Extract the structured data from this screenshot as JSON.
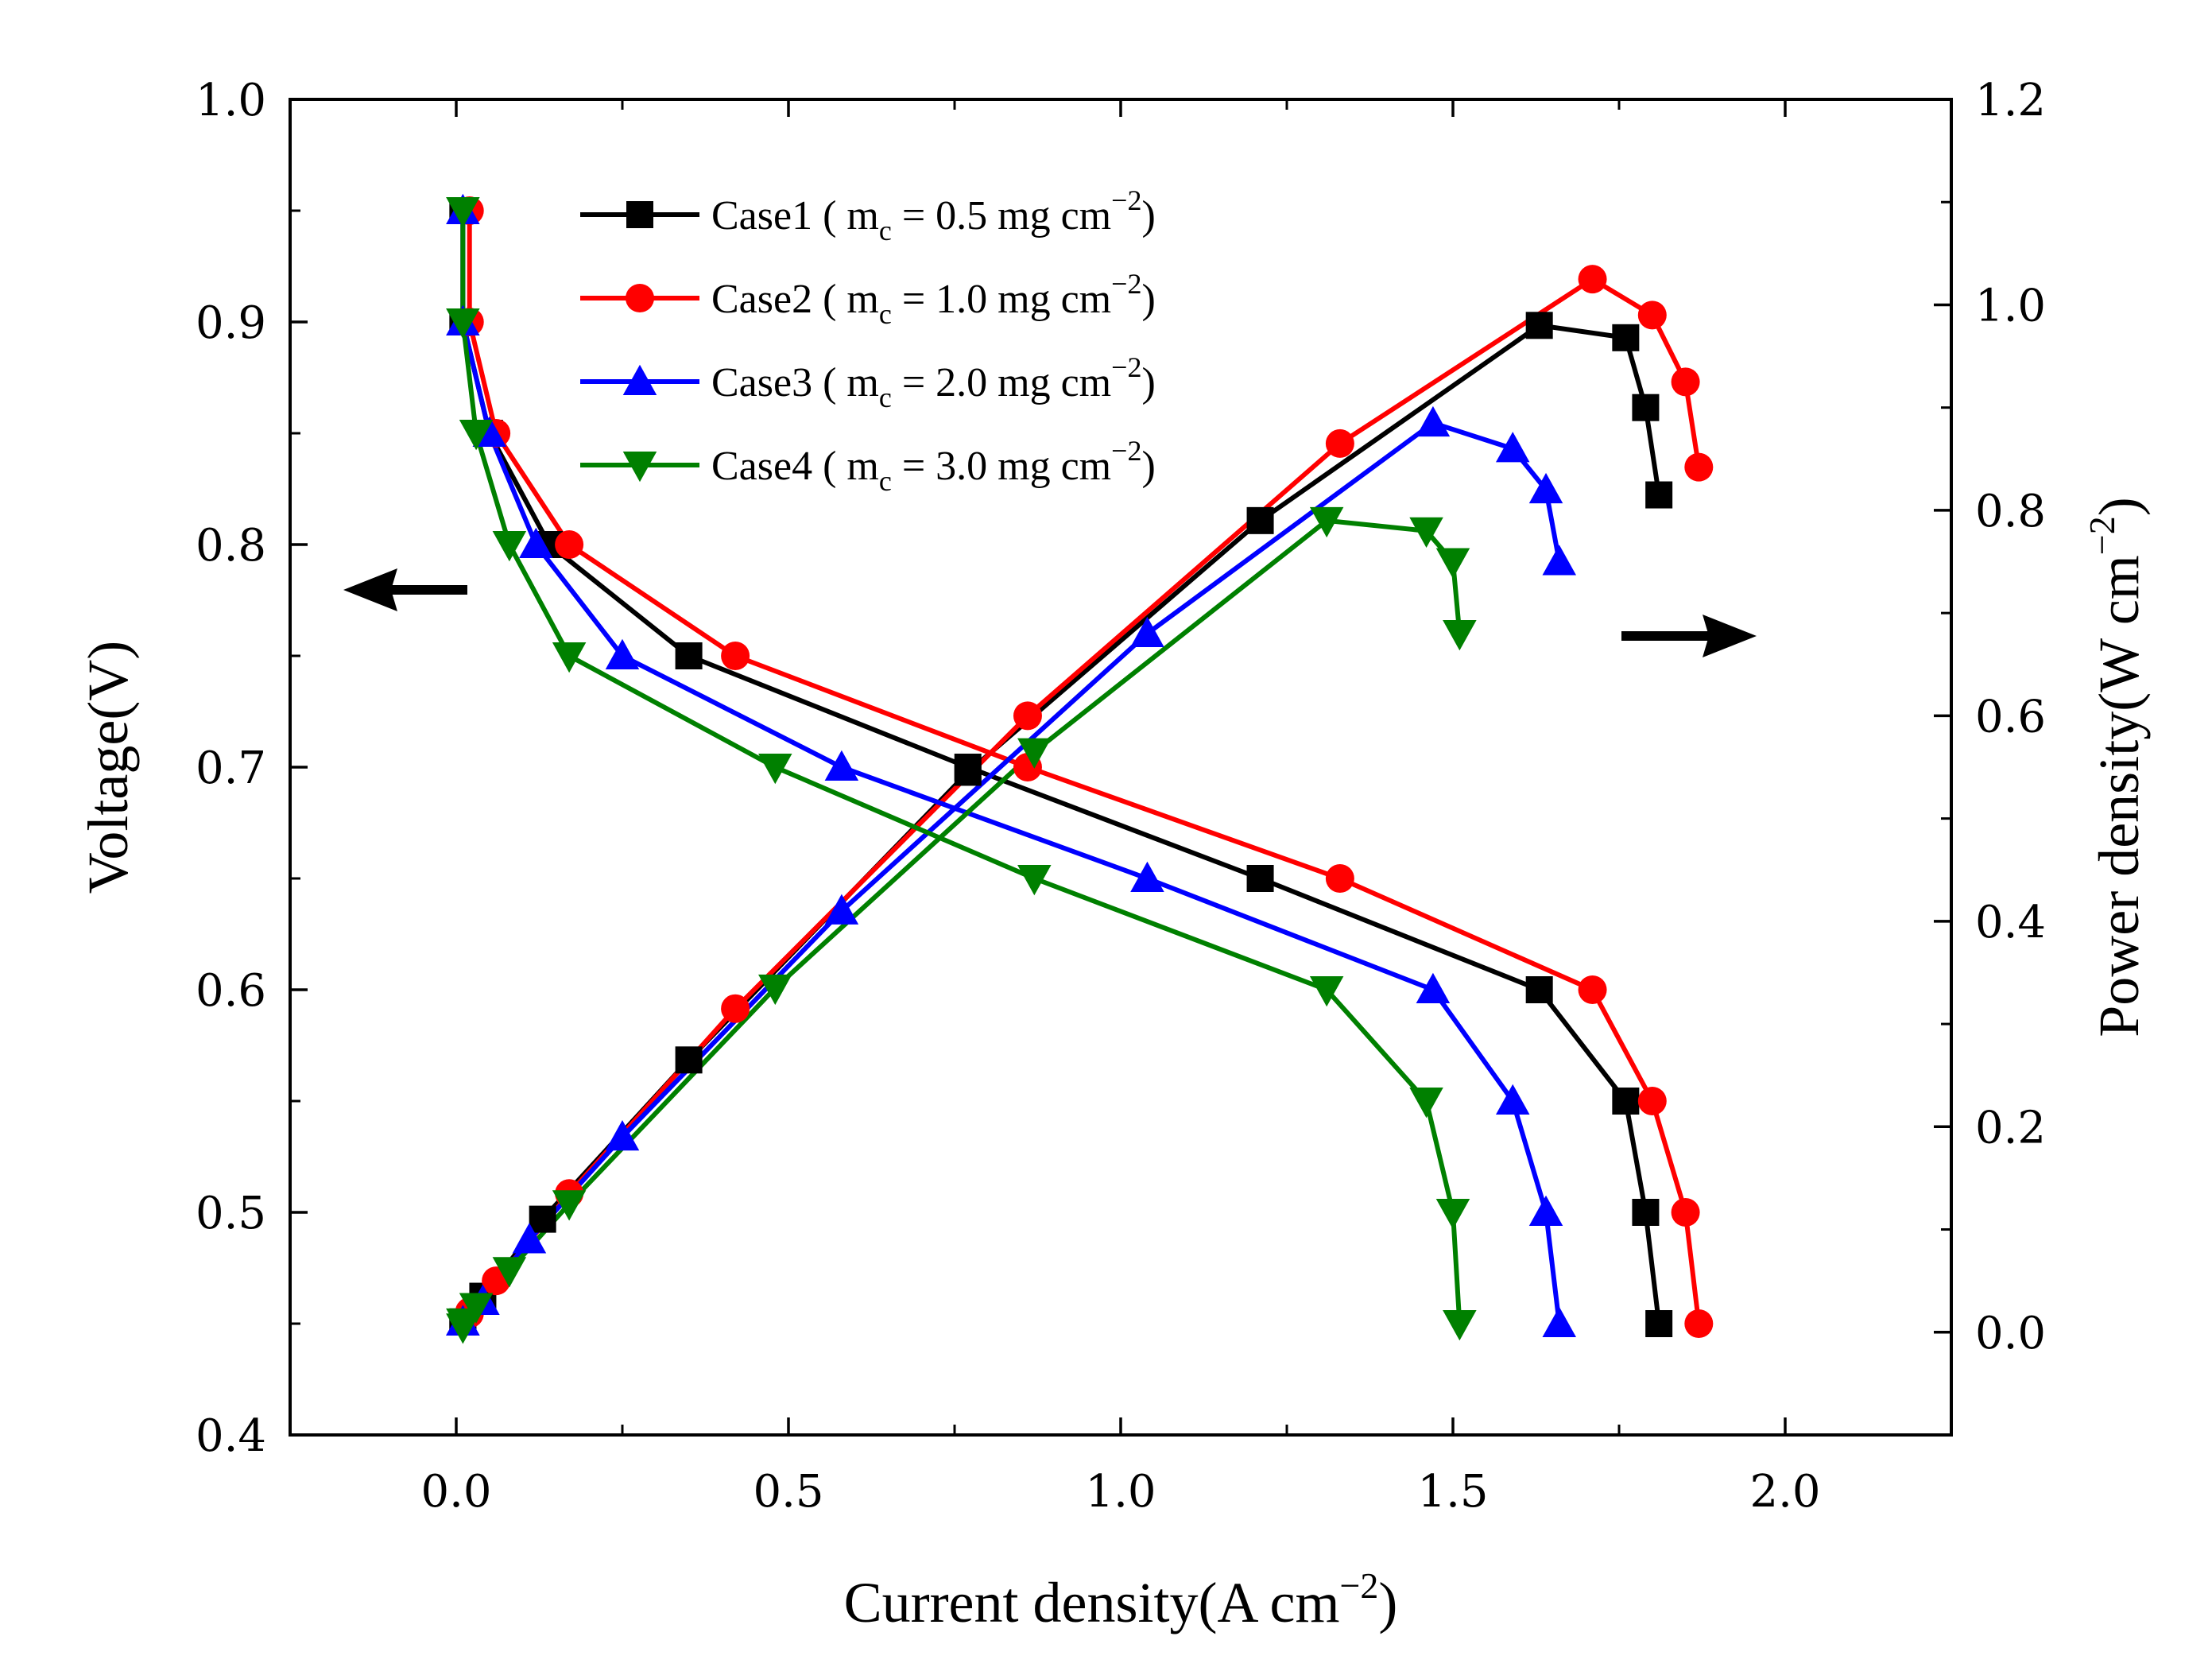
{
  "chart_data": {
    "type": "line",
    "x_axis": {
      "label_main": "Current density(A cm",
      "label_sup": "−2",
      "label_end": ")",
      "range": [
        -0.25,
        2.25
      ],
      "ticks": [
        0.0,
        0.5,
        1.0,
        1.5,
        2.0
      ],
      "tick_labels": [
        "0.0",
        "0.5",
        "1.0",
        "1.5",
        "2.0"
      ]
    },
    "y_left_axis": {
      "label": "Voltage(V)",
      "range": [
        0.4,
        1.0
      ],
      "ticks": [
        0.4,
        0.5,
        0.6,
        0.7,
        0.8,
        0.9,
        1.0
      ],
      "tick_labels": [
        "0.4",
        "0.5",
        "0.6",
        "0.7",
        "0.8",
        "0.9",
        "1.0"
      ]
    },
    "y_right_axis": {
      "label_main": "Power density(W cm",
      "label_sup": "−2",
      "label_end": ")",
      "range": [
        -0.1,
        1.2
      ],
      "ticks": [
        0.0,
        0.2,
        0.4,
        0.6,
        0.8,
        1.0,
        1.2
      ],
      "tick_labels": [
        "0.0",
        "0.2",
        "0.4",
        "0.6",
        "0.8",
        "1.0",
        "1.2"
      ]
    },
    "series": [
      {
        "name": "Case1",
        "legend": {
          "prefix": "Case1 ( m",
          "sub": "c",
          "mid": " = 0.5 mg cm",
          "sup": "−2",
          "suffix": ")"
        },
        "color": "#000000",
        "marker": "square",
        "polarization": {
          "current": [
            0.01,
            0.01,
            0.05,
            0.14,
            0.35,
            0.77,
            1.21,
            1.63,
            1.76,
            1.79,
            1.81
          ],
          "voltage": [
            0.95,
            0.9,
            0.85,
            0.8,
            0.75,
            0.7,
            0.65,
            0.6,
            0.55,
            0.5,
            0.45
          ]
        },
        "power": {
          "current": [
            0.01,
            0.01,
            0.04,
            0.13,
            0.35,
            0.77,
            1.21,
            1.63,
            1.76,
            1.79,
            1.81
          ],
          "power": [
            0.01,
            0.01,
            0.035,
            0.11,
            0.265,
            0.545,
            0.79,
            0.98,
            0.968,
            0.9,
            0.815
          ]
        }
      },
      {
        "name": "Case2",
        "legend": {
          "prefix": "Case2 ( m",
          "sub": "c",
          "mid": " = 1.0 mg cm",
          "sup": "−2",
          "suffix": ")"
        },
        "color": "#ff0000",
        "marker": "circle",
        "polarization": {
          "current": [
            0.02,
            0.02,
            0.06,
            0.17,
            0.42,
            0.86,
            1.33,
            1.71,
            1.8,
            1.85,
            1.87
          ],
          "voltage": [
            0.95,
            0.9,
            0.85,
            0.8,
            0.75,
            0.7,
            0.65,
            0.6,
            0.55,
            0.5,
            0.45
          ]
        },
        "power": {
          "current": [
            0.02,
            0.02,
            0.06,
            0.17,
            0.42,
            0.86,
            1.33,
            1.71,
            1.8,
            1.85,
            1.87
          ],
          "power": [
            0.02,
            0.018,
            0.05,
            0.135,
            0.315,
            0.6,
            0.865,
            1.025,
            0.99,
            0.925,
            0.842
          ]
        }
      },
      {
        "name": "Case3",
        "legend": {
          "prefix": "Case3 ( m",
          "sub": "c",
          "mid": " = 2.0 mg cm",
          "sup": "−2",
          "suffix": ")"
        },
        "color": "#0000ff",
        "marker": "triangle-up",
        "polarization": {
          "current": [
            0.01,
            0.01,
            0.05,
            0.12,
            0.25,
            0.58,
            1.04,
            1.47,
            1.59,
            1.64,
            1.66
          ],
          "voltage": [
            0.95,
            0.9,
            0.85,
            0.8,
            0.75,
            0.7,
            0.65,
            0.6,
            0.55,
            0.5,
            0.45
          ]
        },
        "power": {
          "current": [
            0.01,
            0.01,
            0.04,
            0.11,
            0.25,
            0.58,
            1.04,
            1.47,
            1.59,
            1.64,
            1.66
          ],
          "power": [
            0.01,
            0.01,
            0.03,
            0.09,
            0.19,
            0.41,
            0.68,
            0.885,
            0.86,
            0.82,
            0.75
          ]
        }
      },
      {
        "name": "Case4",
        "legend": {
          "prefix": "Case4 ( m",
          "sub": "c",
          "mid": " = 3.0 mg cm",
          "sup": "−2",
          "suffix": ")"
        },
        "color": "#008000",
        "marker": "triangle-down",
        "polarization": {
          "current": [
            0.01,
            0.01,
            0.03,
            0.08,
            0.17,
            0.48,
            0.87,
            1.31,
            1.46,
            1.5,
            1.51
          ],
          "voltage": [
            0.95,
            0.9,
            0.85,
            0.8,
            0.75,
            0.7,
            0.65,
            0.6,
            0.55,
            0.5,
            0.45
          ]
        },
        "power": {
          "current": [
            0.01,
            0.01,
            0.03,
            0.08,
            0.17,
            0.48,
            0.87,
            1.31,
            1.46,
            1.5,
            1.51
          ],
          "power": [
            0.005,
            0.01,
            0.025,
            0.06,
            0.125,
            0.335,
            0.565,
            0.79,
            0.78,
            0.75,
            0.68
          ]
        }
      }
    ],
    "annotations": [
      {
        "type": "arrow",
        "direction": "left",
        "meaning": "polarization curves read on left axis"
      },
      {
        "type": "arrow",
        "direction": "right",
        "meaning": "power density curves read on right axis"
      }
    ],
    "grid": false,
    "legend_position": "top-left"
  }
}
